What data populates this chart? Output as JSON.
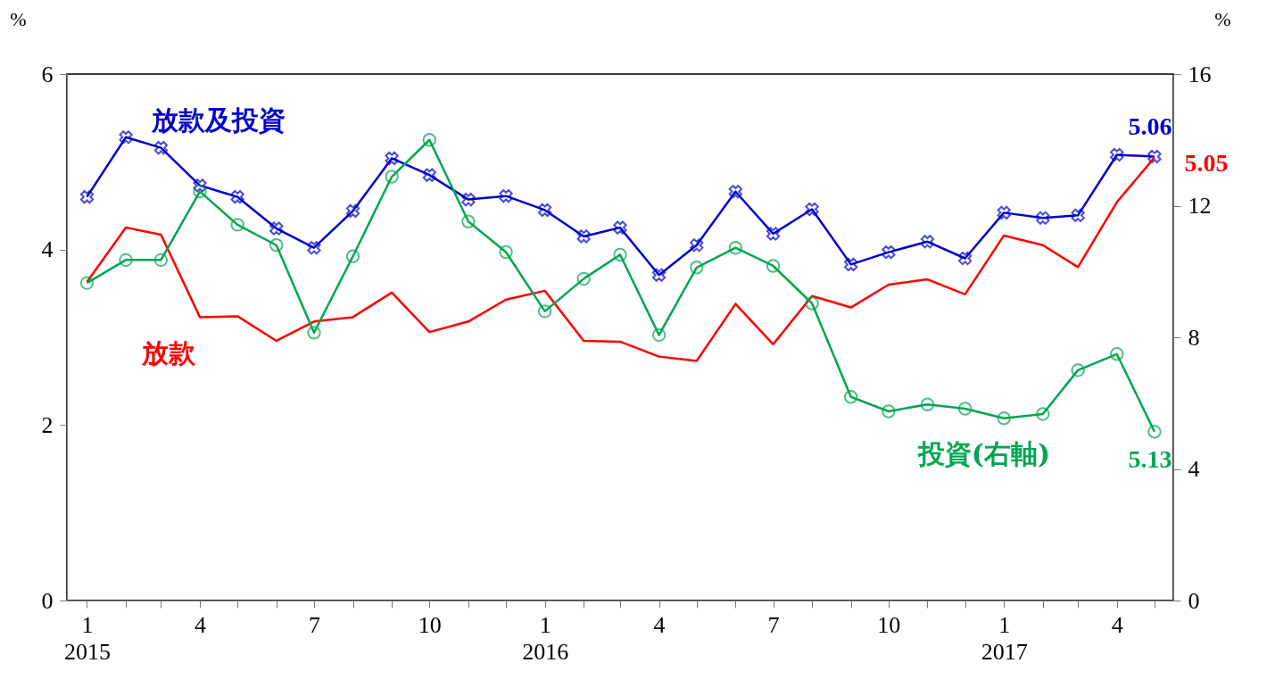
{
  "chart_data": {
    "type": "line",
    "ylabel": "%",
    "y2label": "%",
    "x": [
      "2015-01",
      "2015-02",
      "2015-03",
      "2015-04",
      "2015-05",
      "2015-06",
      "2015-07",
      "2015-08",
      "2015-09",
      "2015-10",
      "2015-11",
      "2015-12",
      "2016-01",
      "2016-02",
      "2016-03",
      "2016-04",
      "2016-05",
      "2016-06",
      "2016-07",
      "2016-08",
      "2016-09",
      "2016-10",
      "2016-11",
      "2016-12",
      "2017-01",
      "2017-02",
      "2017-03",
      "2017-04",
      "2017-05"
    ],
    "xlim": [
      "2014-12-16",
      "2017-05-16"
    ],
    "xticks": [
      {
        "value": "2015-01",
        "label": "1\n2015"
      },
      {
        "value": "2015-02",
        "label": null
      },
      {
        "value": "2015-03",
        "label": null
      },
      {
        "value": "2015-04",
        "label": "4"
      },
      {
        "value": "2015-05",
        "label": null
      },
      {
        "value": "2015-06",
        "label": null
      },
      {
        "value": "2015-07",
        "label": "7"
      },
      {
        "value": "2015-08",
        "label": null
      },
      {
        "value": "2015-09",
        "label": null
      },
      {
        "value": "2015-10",
        "label": "10"
      },
      {
        "value": "2015-11",
        "label": null
      },
      {
        "value": "2015-12",
        "label": null
      },
      {
        "value": "2016-01",
        "label": "1\n2016"
      },
      {
        "value": "2016-02",
        "label": null
      },
      {
        "value": "2016-03",
        "label": null
      },
      {
        "value": "2016-04",
        "label": "4"
      },
      {
        "value": "2016-05",
        "label": null
      },
      {
        "value": "2016-06",
        "label": null
      },
      {
        "value": "2016-07",
        "label": "7"
      },
      {
        "value": "2016-08",
        "label": null
      },
      {
        "value": "2016-09",
        "label": null
      },
      {
        "value": "2016-10",
        "label": "10"
      },
      {
        "value": "2016-11",
        "label": null
      },
      {
        "value": "2016-12",
        "label": null
      },
      {
        "value": "2017-01",
        "label": "1\n2017"
      },
      {
        "value": "2017-02",
        "label": null
      },
      {
        "value": "2017-03",
        "label": null
      },
      {
        "value": "2017-04",
        "label": "4"
      },
      {
        "value": "2017-05",
        "label": null
      }
    ],
    "ylim": [
      0,
      6
    ],
    "yticks": [
      0,
      2,
      4,
      6
    ],
    "y2lim": [
      0,
      16
    ],
    "y2ticks": [
      0,
      4,
      8,
      12,
      16
    ],
    "grid": false,
    "series": [
      {
        "name": "放款及投資",
        "color": "#0000cc",
        "marker": "cross",
        "values": [
          4.6,
          5.28,
          5.16,
          4.73,
          4.6,
          4.24,
          4.02,
          4.44,
          5.04,
          4.85,
          4.57,
          4.61,
          4.45,
          4.15,
          4.25,
          3.71,
          4.05,
          4.66,
          4.18,
          4.46,
          3.83,
          3.97,
          4.09,
          3.9,
          4.42,
          4.36,
          4.39,
          5.08,
          5.06
        ],
        "value_labels": [
          null,
          null,
          null,
          null,
          null,
          null,
          null,
          null,
          null,
          null,
          null,
          null,
          null,
          null,
          null,
          null,
          null,
          null,
          null,
          null,
          null,
          null,
          null,
          null,
          null,
          null,
          null,
          null,
          "5.06"
        ]
      },
      {
        "name": "放款",
        "color": "#ff0000",
        "marker": "none",
        "values": [
          3.63,
          4.25,
          4.17,
          3.23,
          3.24,
          2.96,
          3.18,
          3.23,
          3.51,
          3.06,
          3.18,
          3.43,
          3.53,
          2.96,
          2.95,
          2.78,
          2.73,
          3.38,
          2.92,
          3.47,
          3.34,
          3.6,
          3.66,
          3.49,
          4.16,
          4.05,
          3.8,
          4.54,
          5.05
        ],
        "value_labels": [
          null,
          null,
          null,
          null,
          null,
          null,
          null,
          null,
          null,
          null,
          null,
          null,
          null,
          null,
          null,
          null,
          null,
          null,
          null,
          null,
          null,
          null,
          null,
          null,
          null,
          null,
          null,
          null,
          "5.05"
        ]
      },
      {
        "name": "投資(右軸)",
        "color": "#00a651",
        "marker": "circle",
        "axis": "y2",
        "values": [
          9.65,
          10.35,
          10.35,
          12.43,
          11.42,
          10.8,
          8.14,
          10.46,
          12.88,
          14.0,
          11.52,
          10.59,
          8.79,
          9.78,
          10.51,
          8.07,
          10.12,
          10.72,
          10.17,
          9.03,
          6.19,
          5.75,
          5.96,
          5.83,
          5.54,
          5.67,
          7.0,
          7.49,
          5.13
        ],
        "value_labels": [
          null,
          null,
          null,
          null,
          null,
          null,
          null,
          null,
          null,
          null,
          null,
          null,
          null,
          null,
          null,
          null,
          null,
          null,
          null,
          null,
          null,
          null,
          null,
          null,
          null,
          null,
          null,
          null,
          "5.13"
        ]
      }
    ]
  }
}
